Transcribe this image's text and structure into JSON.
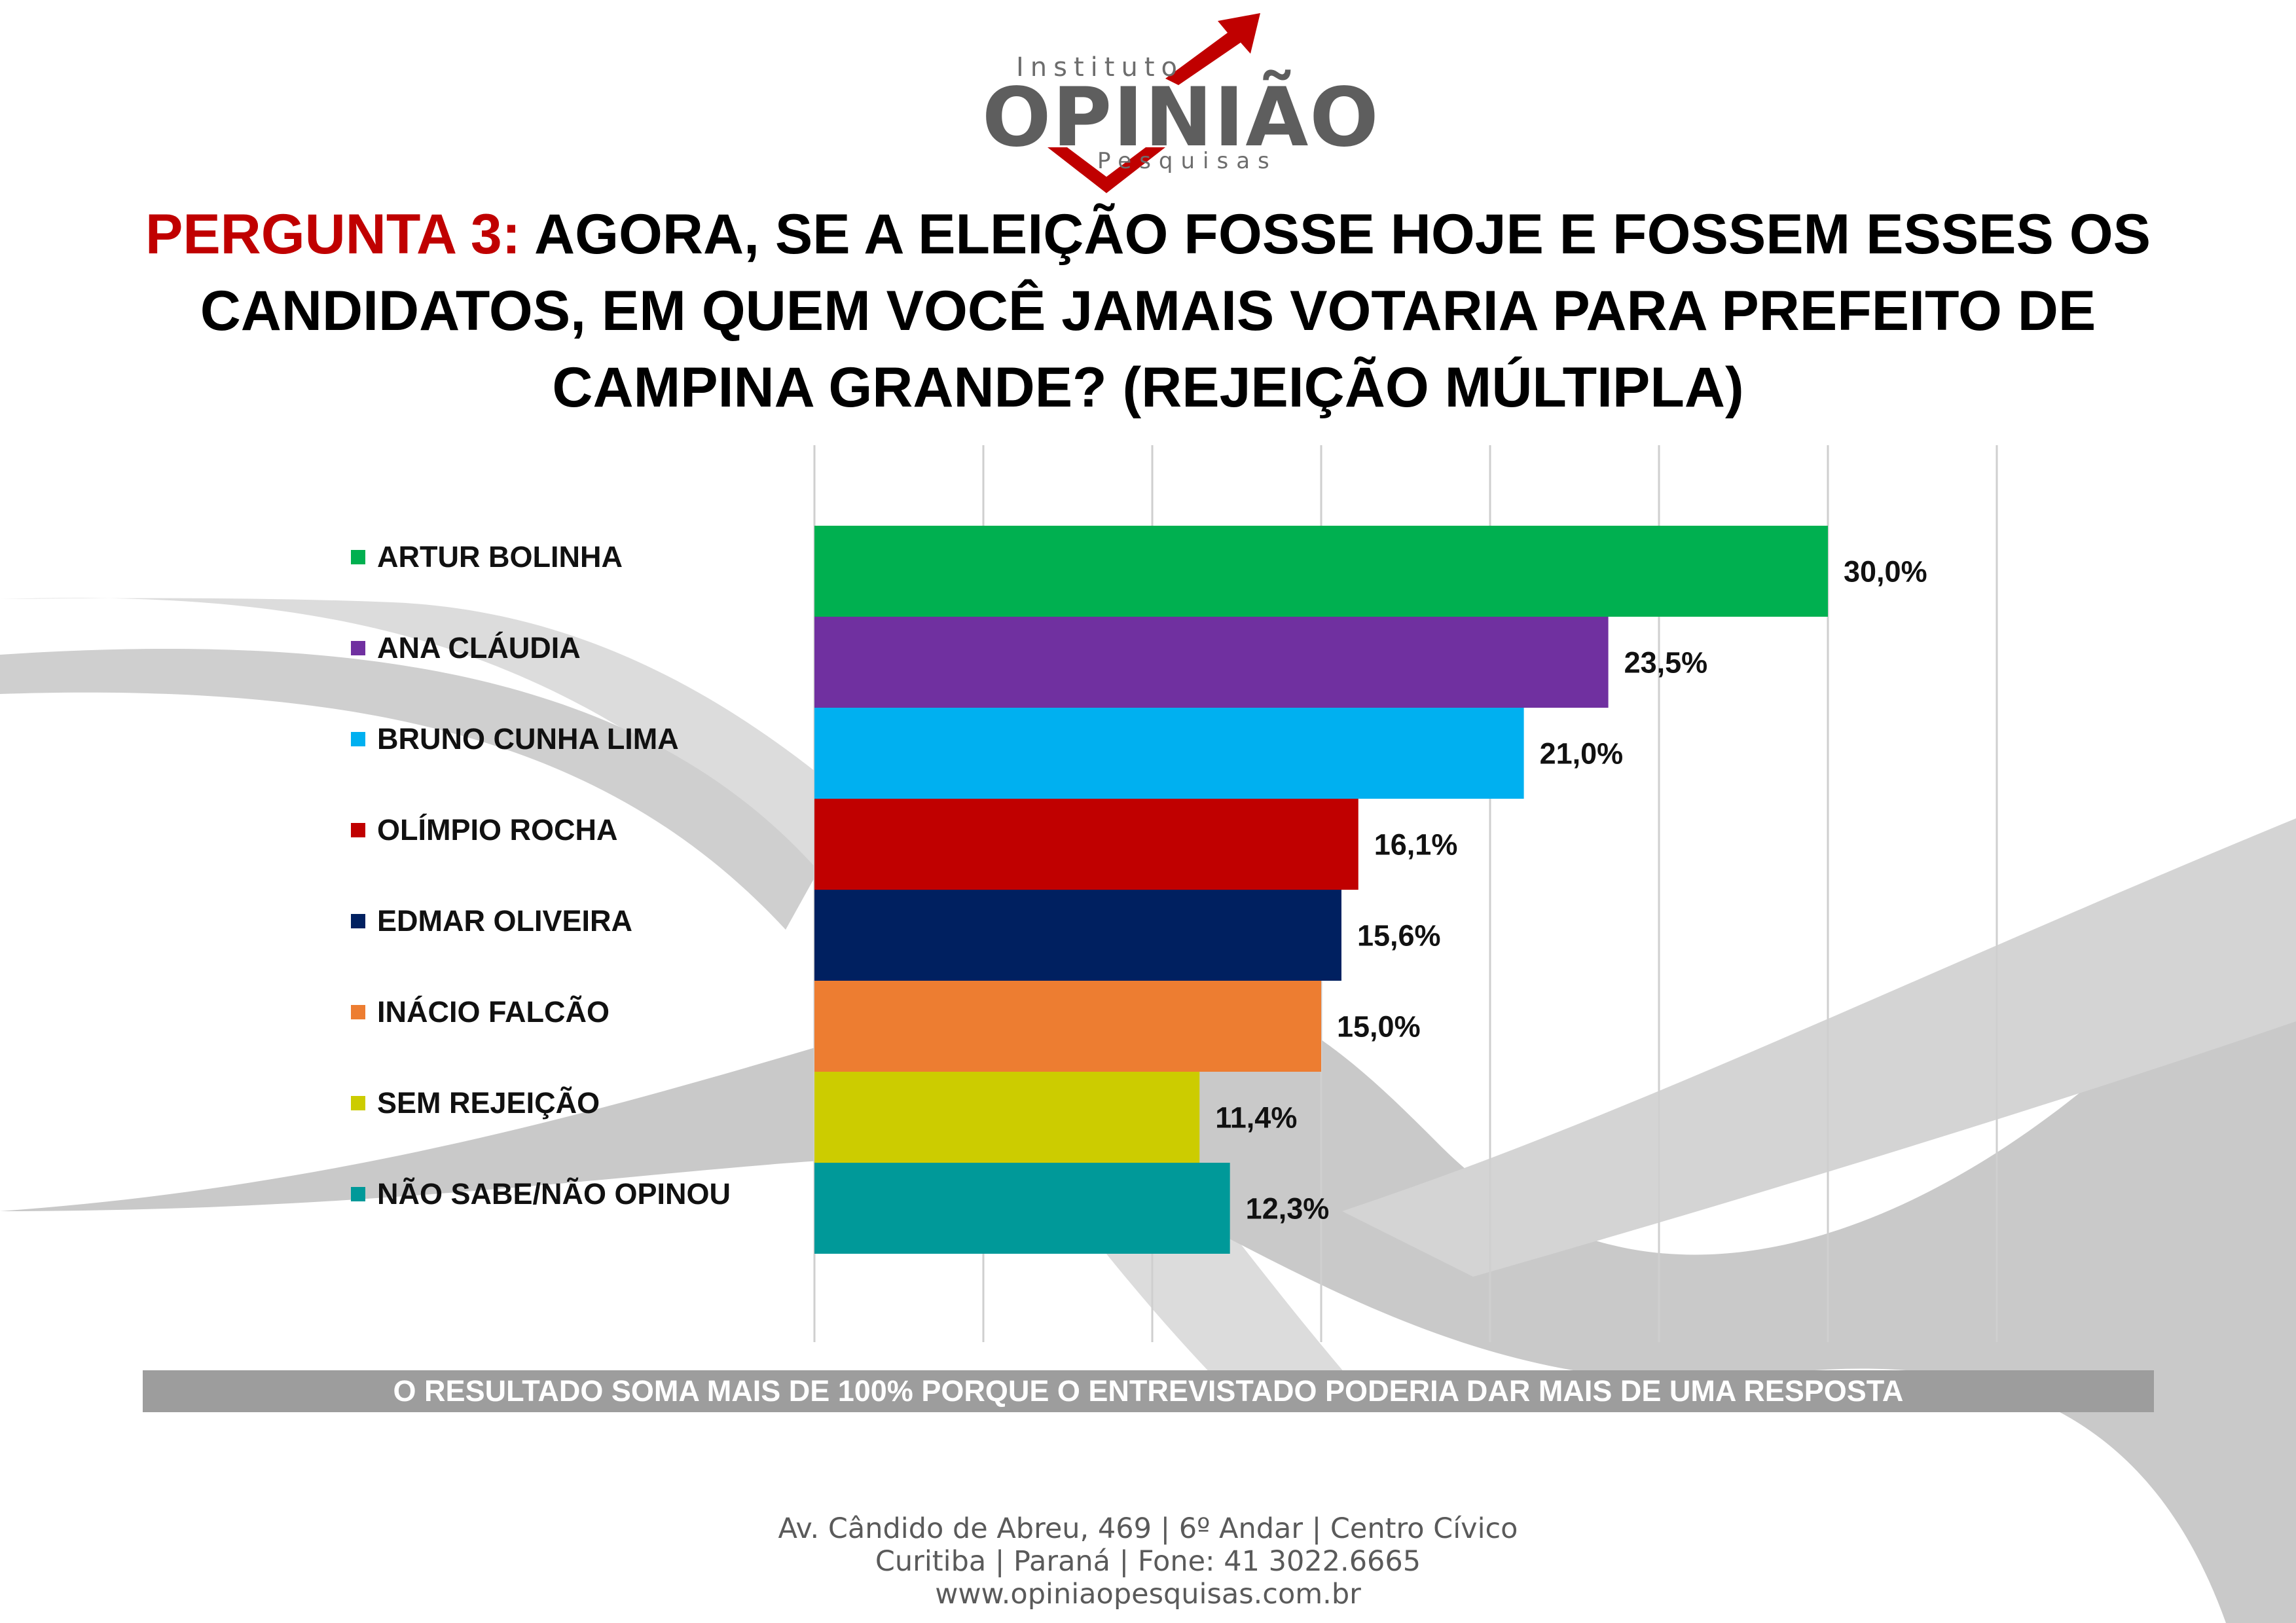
{
  "logo": {
    "top_text": "Instituto",
    "main_text": "OPINIÃO",
    "bottom_text": "Pesquisas",
    "main_color": "#5e5e5e",
    "accent_color": "#c00000"
  },
  "question": {
    "label": "PERGUNTA 3:",
    "text": "AGORA, SE A ELEIÇÃO FOSSE HOJE E FOSSEM ESSES OS CANDIDATOS, EM QUEM VOCÊ JAMAIS VOTARIA PARA PREFEITO DE CAMPINA GRANDE? (REJEIÇÃO MÚLTIPLA)",
    "label_color": "#c00000"
  },
  "chart_data": {
    "type": "bar",
    "orientation": "horizontal",
    "title": "",
    "xlabel": "",
    "ylabel": "",
    "xlim": [
      0,
      35
    ],
    "grid": true,
    "legend_placement": "left",
    "categories": [
      "ARTUR BOLINHA",
      "ANA CLÁUDIA",
      "BRUNO CUNHA LIMA",
      "OLÍMPIO ROCHA",
      "EDMAR OLIVEIRA",
      "INÁCIO FALCÃO",
      "SEM REJEIÇÃO",
      "NÃO SABE/NÃO OPINOU"
    ],
    "values": [
      30.0,
      23.5,
      21.0,
      16.1,
      15.6,
      15.0,
      11.4,
      12.3
    ],
    "value_labels": [
      "30,0%",
      "23,5%",
      "21,0%",
      "16,1%",
      "15,6%",
      "15,0%",
      "11,4%",
      "12,3%"
    ],
    "colors": [
      "#00b050",
      "#7030a0",
      "#00b0f0",
      "#c00000",
      "#002060",
      "#ed7d31",
      "#cccc00",
      "#009999"
    ]
  },
  "note": "O RESULTADO SOMA MAIS DE 100% PORQUE O ENTREVISTADO PODERIA DAR MAIS DE UMA RESPOSTA",
  "footer": {
    "line1": "Av. Cândido de Abreu, 469 | 6º Andar | Centro Cívico",
    "line2": "Curitiba | Paraná | Fone: 41 3022.6665",
    "line3": "www.opiniaopesquisas.com.br"
  }
}
